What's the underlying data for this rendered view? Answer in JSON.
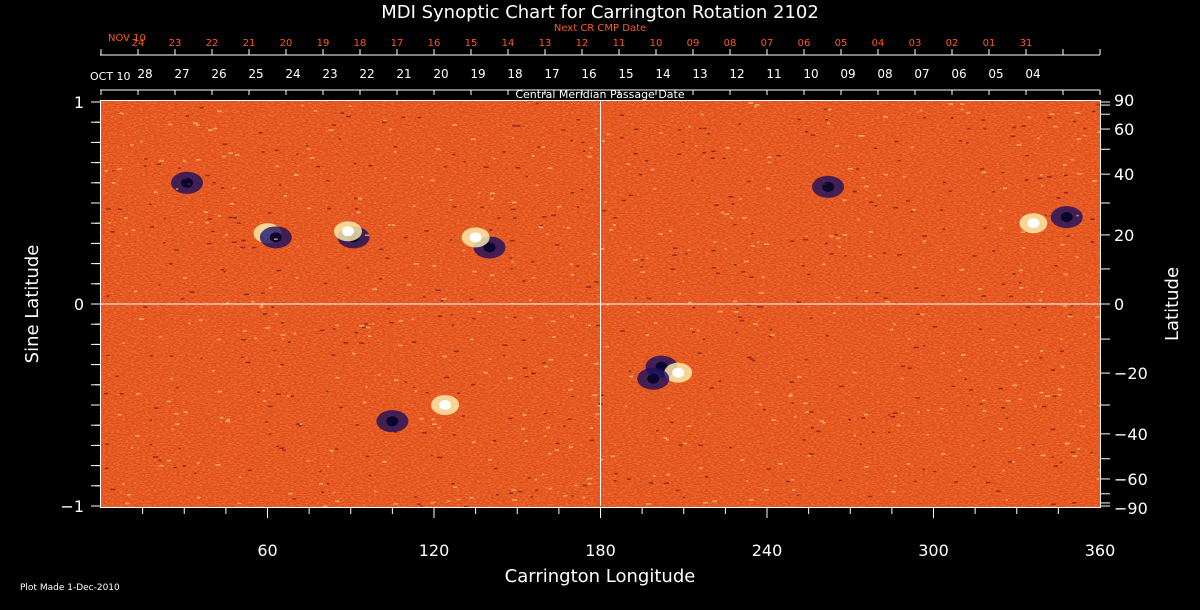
{
  "chart_data": {
    "type": "heatmap",
    "title": "MDI Synoptic Chart for Carrington Rotation 2102",
    "xlabel": "Carrington Longitude",
    "ylabel_left": "Sine Latitude",
    "ylabel_right": "Latitude",
    "xlim": [
      0,
      360
    ],
    "ylim": [
      -1,
      1
    ],
    "x_ticks": [
      {
        "value": 60,
        "label": "60"
      },
      {
        "value": 120,
        "label": "120"
      },
      {
        "value": 180,
        "label": "180"
      },
      {
        "value": 240,
        "label": "240"
      },
      {
        "value": 300,
        "label": "300"
      },
      {
        "value": 360,
        "label": "360"
      }
    ],
    "y_ticks_left": [
      {
        "value": 1,
        "label": "1"
      },
      {
        "value": 0,
        "label": "0"
      },
      {
        "value": -1,
        "label": "−1"
      }
    ],
    "y_ticks_right": [
      {
        "deg": 90,
        "label": "90"
      },
      {
        "deg": 60,
        "label": "60"
      },
      {
        "deg": 40,
        "label": "40"
      },
      {
        "deg": 20,
        "label": "20"
      },
      {
        "deg": 0,
        "label": "0"
      },
      {
        "deg": -20,
        "label": "−20"
      },
      {
        "deg": -40,
        "label": "−40"
      },
      {
        "deg": -60,
        "label": "−60"
      },
      {
        "deg": -90,
        "label": "−90"
      }
    ],
    "cmp_axis": {
      "label": "Central Meridian Passage Date",
      "start_label": "OCT 10",
      "dates": [
        "28",
        "27",
        "26",
        "25",
        "24",
        "23",
        "22",
        "21",
        "20",
        "19",
        "18",
        "17",
        "16",
        "15",
        "14",
        "13",
        "12",
        "11",
        "10",
        "09",
        "08",
        "07",
        "06",
        "05",
        "04"
      ]
    },
    "next_cr_axis": {
      "label": "Next CR CMP Date",
      "start_label": "NOV 10",
      "dates": [
        "24",
        "23",
        "22",
        "21",
        "20",
        "19",
        "18",
        "17",
        "16",
        "15",
        "14",
        "13",
        "12",
        "11",
        "10",
        "09",
        "08",
        "07",
        "06",
        "05",
        "04",
        "03",
        "02",
        "01",
        "31"
      ]
    },
    "colors": {
      "background_field": "#e8501c",
      "positive_polarity": "#fff2b0",
      "negative_polarity": "#1a1060",
      "axis": "#ffffff",
      "next_cr": "#ff5a1a"
    }
  },
  "footer": {
    "plot_made": "Plot Made  1-Dec-2010"
  }
}
